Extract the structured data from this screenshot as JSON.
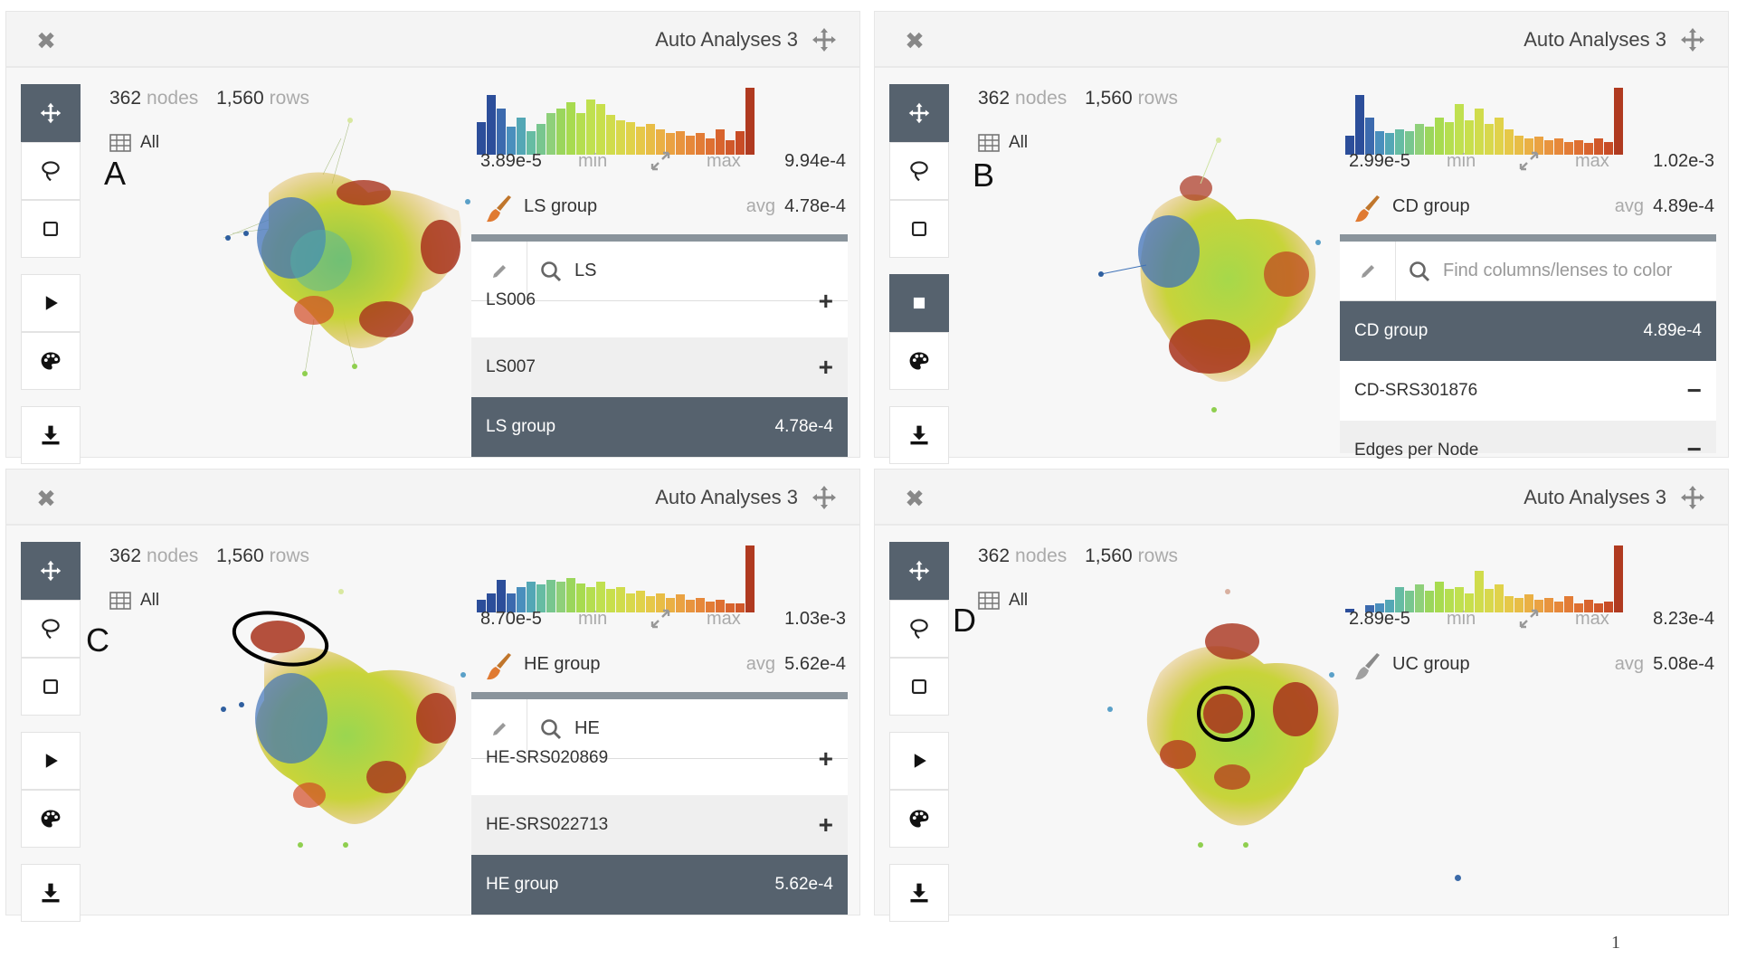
{
  "panels": [
    {
      "id": "A",
      "title": "Auto Analyses 3",
      "nodes": "362",
      "nodes_label": "nodes",
      "rows": "1,560",
      "rows_label": "rows",
      "filter_label": "All",
      "letter": "A",
      "min_value": "3.89e-5",
      "min_label": "min",
      "max_label": "max",
      "max_value": "9.94e-4",
      "group_name": "LS group",
      "avg_label": "avg",
      "avg_value": "4.78e-4",
      "search_query": "LS",
      "lens_items": [
        {
          "label": "LS006",
          "sign": "+"
        },
        {
          "label": "LS007",
          "sign": "+"
        },
        {
          "label": "LS group",
          "value": "4.78e-4",
          "selected": true
        }
      ],
      "colors": {
        "brush": "#e07a32"
      }
    },
    {
      "id": "B",
      "title": "Auto Analyses 3",
      "nodes": "362",
      "nodes_label": "nodes",
      "rows": "1,560",
      "rows_label": "rows",
      "filter_label": "All",
      "letter": "B",
      "min_value": "2.99e-5",
      "min_label": "min",
      "max_label": "max",
      "max_value": "1.02e-3",
      "group_name": "CD group",
      "avg_label": "avg",
      "avg_value": "4.89e-4",
      "search_placeholder": "Find columns/lenses to color",
      "lens_items": [
        {
          "label": "CD group",
          "value": "4.89e-4",
          "selected": true
        },
        {
          "label": "CD-SRS301876",
          "sign": "−"
        },
        {
          "label": "Edges per Node",
          "sign": "−"
        }
      ],
      "colors": {
        "brush": "#e07a32"
      }
    },
    {
      "id": "C",
      "title": "Auto Analyses 3",
      "nodes": "362",
      "nodes_label": "nodes",
      "rows": "1,560",
      "rows_label": "rows",
      "filter_label": "All",
      "letter": "C",
      "min_value": "8.70e-5",
      "min_label": "min",
      "max_label": "max",
      "max_value": "1.03e-3",
      "group_name": "HE group",
      "avg_label": "avg",
      "avg_value": "5.62e-4",
      "search_query": "HE",
      "lens_items": [
        {
          "label": "HE-SRS020869",
          "sign": "+"
        },
        {
          "label": "HE-SRS022713",
          "sign": "+"
        },
        {
          "label": "HE group",
          "value": "5.62e-4",
          "selected": true
        }
      ],
      "colors": {
        "brush": "#e07a32"
      }
    },
    {
      "id": "D",
      "title": "Auto Analyses 3",
      "nodes": "362",
      "nodes_label": "nodes",
      "rows": "1,560",
      "rows_label": "rows",
      "filter_label": "All",
      "letter": "D",
      "min_value": "2.89e-5",
      "min_label": "min",
      "max_label": "max",
      "max_value": "8.23e-4",
      "group_name": "UC group",
      "avg_label": "avg",
      "avg_value": "5.08e-4",
      "colors": {
        "brush": "#999999"
      }
    }
  ],
  "toolbar": {
    "tools": [
      "move-icon",
      "lasso-icon",
      "rectangle-select-icon",
      "play-icon",
      "palette-icon",
      "download-icon"
    ]
  },
  "page_number": "1"
}
